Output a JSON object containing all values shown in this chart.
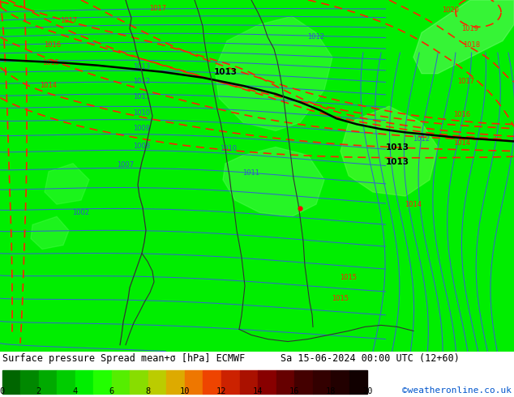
{
  "title_line1": "Surface pressure Spread mean+σ [hPa] ECMWF",
  "title_line2": "Sa 15-06-2024 00:00 UTC (12+60)",
  "watermark": "©weatheronline.co.uk",
  "colorbar_ticks": [
    0,
    2,
    4,
    6,
    8,
    10,
    12,
    14,
    16,
    18,
    20
  ],
  "colorbar_colors": [
    "#006600",
    "#008800",
    "#00aa00",
    "#00cc00",
    "#00ee00",
    "#22ff00",
    "#55ee00",
    "#88dd00",
    "#bbcc00",
    "#ddaa00",
    "#ee7700",
    "#ee4400",
    "#cc2200",
    "#aa1100",
    "#880000",
    "#660000",
    "#440000",
    "#330000",
    "#220000",
    "#110000"
  ],
  "map_bg_color": "#00ee00",
  "bottom_bg_color": "#ffffff",
  "figsize": [
    6.34,
    4.9
  ],
  "dpi": 100,
  "blue_label_color": "#3355cc",
  "red_label_color": "#ff2200",
  "black_label_color": "#000000",
  "watermark_color": "#0055cc"
}
